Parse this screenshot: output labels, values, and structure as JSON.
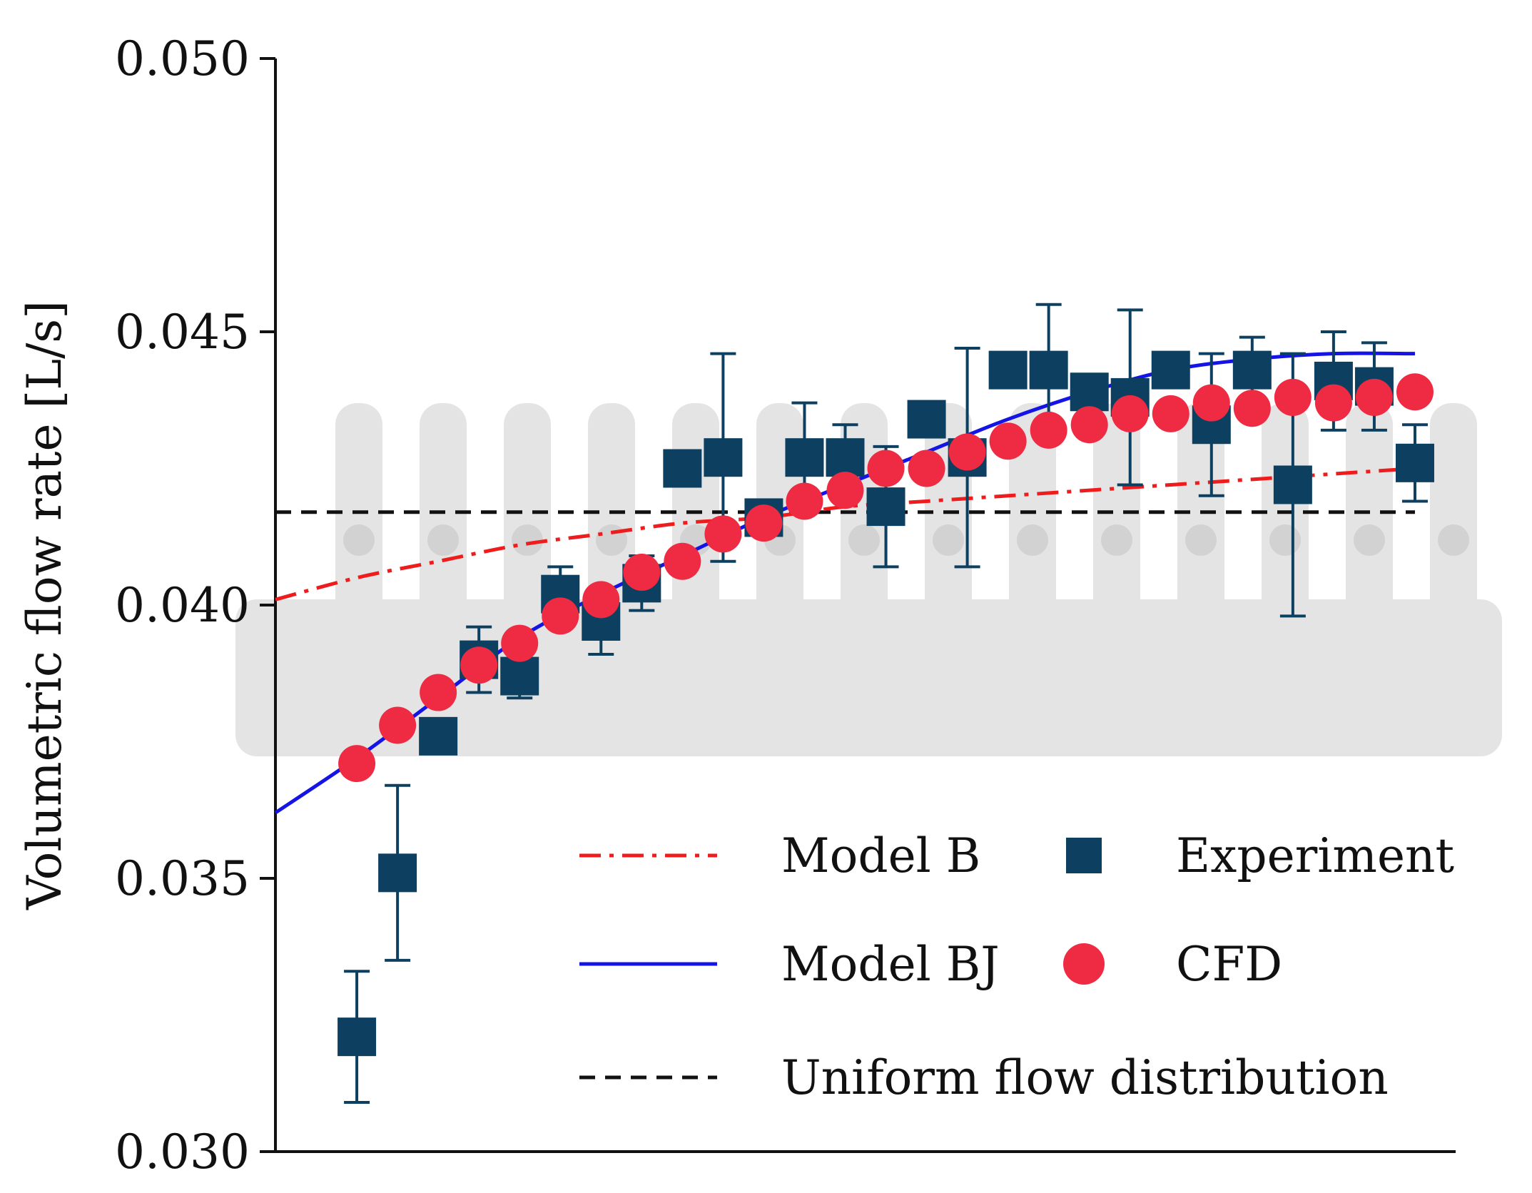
{
  "chart_data": {
    "type": "scatter",
    "title": "",
    "xlabel": "",
    "ylabel": "Volumetric flow rate [L/s]",
    "xlim": [
      0,
      29
    ],
    "ylim": [
      0.03,
      0.05
    ],
    "yticks": [
      "0.030",
      "0.035",
      "0.040",
      "0.045",
      "0.050"
    ],
    "ytick_values": [
      0.03,
      0.035,
      0.04,
      0.045,
      0.05
    ],
    "grid": false,
    "legend_position": "bottom-right",
    "legend": {
      "model_b": "Model B",
      "model_bj": "Model BJ",
      "uniform": "Uniform flow distribution",
      "experiment": "Experiment",
      "cfd": "CFD"
    },
    "colors": {
      "model_b": "#ee1c1c",
      "model_bj": "#1414e6",
      "uniform": "#111111",
      "experiment": "#0d4060",
      "cfd": "#ee2b42",
      "manifold": "#e4e4e4"
    },
    "series": [
      {
        "name": "Experiment",
        "x": [
          2,
          3,
          4,
          5,
          6,
          7,
          8,
          9,
          10,
          11,
          12,
          13,
          14,
          15,
          16,
          17,
          18,
          19,
          20,
          21,
          22,
          23,
          24,
          25,
          26,
          27,
          28
        ],
        "values": [
          0.0321,
          0.0351,
          0.0376,
          0.039,
          0.0387,
          0.0402,
          0.0397,
          0.0404,
          0.0425,
          0.0427,
          0.0416,
          0.0427,
          0.0427,
          0.0418,
          0.0434,
          0.0427,
          0.0443,
          0.0443,
          0.0439,
          0.0438,
          0.0443,
          0.0433,
          0.0443,
          0.0422,
          0.0441,
          0.044,
          0.0426
        ],
        "error": [
          0.0012,
          0.0016,
          0.0,
          0.0006,
          0.0004,
          0.0005,
          0.0006,
          0.0005,
          0.0,
          0.0019,
          0.0,
          0.001,
          0.0006,
          0.0011,
          0.0,
          0.002,
          0.0,
          0.0012,
          0.0,
          0.0016,
          0.0,
          0.0013,
          0.0006,
          0.0024,
          0.0009,
          0.0008,
          0.0007
        ]
      },
      {
        "name": "CFD",
        "x": [
          2,
          3,
          4,
          5,
          6,
          7,
          8,
          9,
          10,
          11,
          12,
          13,
          14,
          15,
          16,
          17,
          18,
          19,
          20,
          21,
          22,
          23,
          24,
          25,
          26,
          27,
          28
        ],
        "values": [
          0.0371,
          0.0378,
          0.0384,
          0.0389,
          0.0393,
          0.0398,
          0.0401,
          0.0406,
          0.0408,
          0.0413,
          0.0415,
          0.0419,
          0.0421,
          0.0425,
          0.0425,
          0.0428,
          0.043,
          0.0432,
          0.0433,
          0.0435,
          0.0435,
          0.0437,
          0.0436,
          0.0438,
          0.0437,
          0.0438,
          0.0439
        ]
      },
      {
        "name": "Model B",
        "x": [
          0,
          2,
          4,
          6,
          8,
          10,
          12,
          14,
          16,
          18,
          20,
          22,
          24,
          26,
          28
        ],
        "values": [
          0.0401,
          0.0405,
          0.0408,
          0.0411,
          0.0413,
          0.0415,
          0.0416,
          0.0418,
          0.0419,
          0.042,
          0.0421,
          0.0422,
          0.0423,
          0.0424,
          0.0425
        ]
      },
      {
        "name": "Model BJ",
        "x": [
          0,
          2,
          4,
          6,
          8,
          10,
          12,
          14,
          16,
          18,
          20,
          22,
          24,
          26,
          28
        ],
        "values": [
          0.0362,
          0.0372,
          0.0383,
          0.0394,
          0.0402,
          0.0409,
          0.0416,
          0.0422,
          0.0428,
          0.0434,
          0.0439,
          0.0443,
          0.0445,
          0.0446,
          0.0446
        ]
      },
      {
        "name": "Uniform flow distribution",
        "x": [
          0,
          28
        ],
        "values": [
          0.0417,
          0.0417
        ]
      }
    ]
  }
}
